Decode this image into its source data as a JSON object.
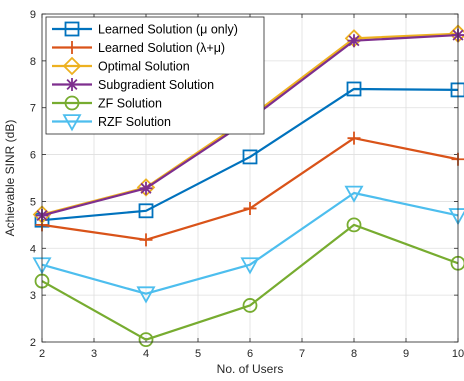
{
  "chart_data": {
    "type": "line",
    "xlabel": "No. of Users",
    "ylabel": "Achievable SINR (dB)",
    "xlim": [
      2,
      10
    ],
    "ylim": [
      2,
      9
    ],
    "xticks": [
      "2",
      "3",
      "4",
      "5",
      "6",
      "7",
      "8",
      "9",
      "10"
    ],
    "yticks": [
      "2",
      "3",
      "4",
      "5",
      "6",
      "7",
      "8",
      "9"
    ],
    "grid": true,
    "legend_position": "top-left",
    "series": [
      {
        "name": "Learned Solution (μ only)",
        "color": "#0072BD",
        "marker": "square",
        "x": [
          2,
          4,
          6,
          8,
          10
        ],
        "y": [
          4.6,
          4.8,
          5.95,
          7.4,
          7.38
        ]
      },
      {
        "name": "Learned Solution (λ+μ)",
        "color": "#D95319",
        "marker": "plus",
        "x": [
          2,
          4,
          6,
          8,
          10
        ],
        "y": [
          4.5,
          4.18,
          4.85,
          6.35,
          5.9
        ]
      },
      {
        "name": "Optimal Solution",
        "color": "#EDB120",
        "marker": "diamond",
        "x": [
          2,
          4,
          6,
          8,
          10
        ],
        "y": [
          4.72,
          5.3,
          6.8,
          8.48,
          8.58
        ]
      },
      {
        "name": "Subgradient Solution",
        "color": "#7E2F8E",
        "marker": "asterisk",
        "x": [
          2,
          4,
          6,
          8,
          10
        ],
        "y": [
          4.7,
          5.28,
          6.75,
          8.43,
          8.55
        ]
      },
      {
        "name": "ZF Solution",
        "color": "#77AC30",
        "marker": "circle",
        "x": [
          2,
          4,
          6,
          8,
          10
        ],
        "y": [
          3.3,
          2.05,
          2.78,
          4.5,
          3.68
        ]
      },
      {
        "name": "RZF Solution",
        "color": "#4DBEEE",
        "marker": "triangle-down",
        "x": [
          2,
          4,
          6,
          8,
          10
        ],
        "y": [
          3.65,
          3.03,
          3.65,
          5.18,
          4.7
        ]
      }
    ]
  }
}
